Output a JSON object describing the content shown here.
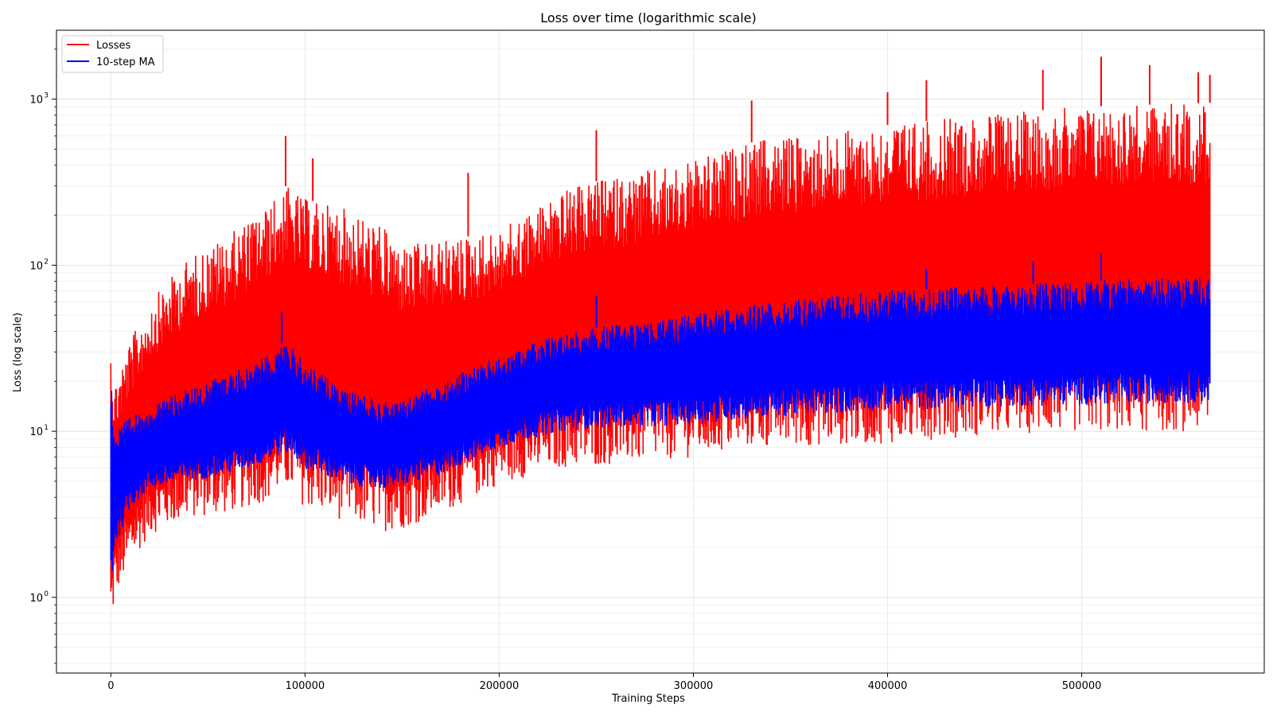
{
  "chart_data": {
    "type": "line",
    "title": "Loss over time (logarithmic scale)",
    "xlabel": "Training Steps",
    "ylabel": "Loss (log scale)",
    "xlim": [
      -28000,
      594000
    ],
    "ylim": [
      0.35,
      2600
    ],
    "yscale": "log",
    "grid": true,
    "legend_position": "top-left",
    "xticks": [
      0,
      100000,
      200000,
      300000,
      400000,
      500000
    ],
    "xtick_labels": [
      "0",
      "100000",
      "200000",
      "300000",
      "400000",
      "500000"
    ],
    "yticks": [
      1,
      10,
      100,
      1000
    ],
    "ytick_labels": [
      {
        "base": "10",
        "exp": "0"
      },
      {
        "base": "10",
        "exp": "1"
      },
      {
        "base": "10",
        "exp": "2"
      },
      {
        "base": "10",
        "exp": "3"
      }
    ],
    "series": [
      {
        "name": "Losses",
        "color": "#ff0000",
        "envelope": {
          "x": [
            0,
            2000,
            10000,
            20000,
            40000,
            60000,
            80000,
            90000,
            100000,
            120000,
            140000,
            150000,
            170000,
            200000,
            230000,
            250000,
            300000,
            330000,
            400000,
            450000,
            500000,
            566000
          ],
          "lower": [
            0.55,
            1.0,
            1.6,
            2.4,
            3.0,
            3.2,
            3.8,
            4.5,
            3.5,
            2.9,
            2.5,
            2.6,
            3.2,
            4.8,
            6.0,
            6.2,
            7.0,
            8.0,
            8.5,
            9.5,
            10.0,
            10.0
          ],
          "upper": [
            35,
            20,
            35,
            60,
            110,
            150,
            220,
            300,
            250,
            220,
            170,
            130,
            140,
            160,
            270,
            320,
            420,
            550,
            700,
            800,
            900,
            950
          ]
        },
        "spikes": [
          {
            "x": 90000,
            "y": 600
          },
          {
            "x": 104000,
            "y": 440
          },
          {
            "x": 184000,
            "y": 360
          },
          {
            "x": 250000,
            "y": 650
          },
          {
            "x": 330000,
            "y": 980
          },
          {
            "x": 400000,
            "y": 1100
          },
          {
            "x": 420000,
            "y": 1300
          },
          {
            "x": 480000,
            "y": 1500
          },
          {
            "x": 510000,
            "y": 1800
          },
          {
            "x": 535000,
            "y": 1600
          },
          {
            "x": 560000,
            "y": 1450
          },
          {
            "x": 566000,
            "y": 1400
          }
        ]
      },
      {
        "name": "10-step MA",
        "color": "#0000ff",
        "envelope": {
          "x": [
            0,
            2000,
            10000,
            20000,
            40000,
            60000,
            80000,
            90000,
            100000,
            120000,
            140000,
            150000,
            170000,
            200000,
            230000,
            250000,
            300000,
            330000,
            400000,
            450000,
            500000,
            566000
          ],
          "lower": [
            1.0,
            2.0,
            3.5,
            4.5,
            5.0,
            5.5,
            6.5,
            7.5,
            6.0,
            4.8,
            4.5,
            4.7,
            5.5,
            8.0,
            10.0,
            10.5,
            11.0,
            12.0,
            13.5,
            14.0,
            14.5,
            15.0
          ],
          "upper": [
            25,
            10,
            12,
            14,
            18,
            22,
            28,
            35,
            26,
            18,
            15,
            15,
            20,
            28,
            38,
            42,
            50,
            58,
            70,
            75,
            80,
            85
          ]
        },
        "spikes": [
          {
            "x": 88000,
            "y": 52
          },
          {
            "x": 250000,
            "y": 65
          },
          {
            "x": 420000,
            "y": 95
          },
          {
            "x": 475000,
            "y": 105
          },
          {
            "x": 510000,
            "y": 118
          }
        ]
      }
    ]
  }
}
